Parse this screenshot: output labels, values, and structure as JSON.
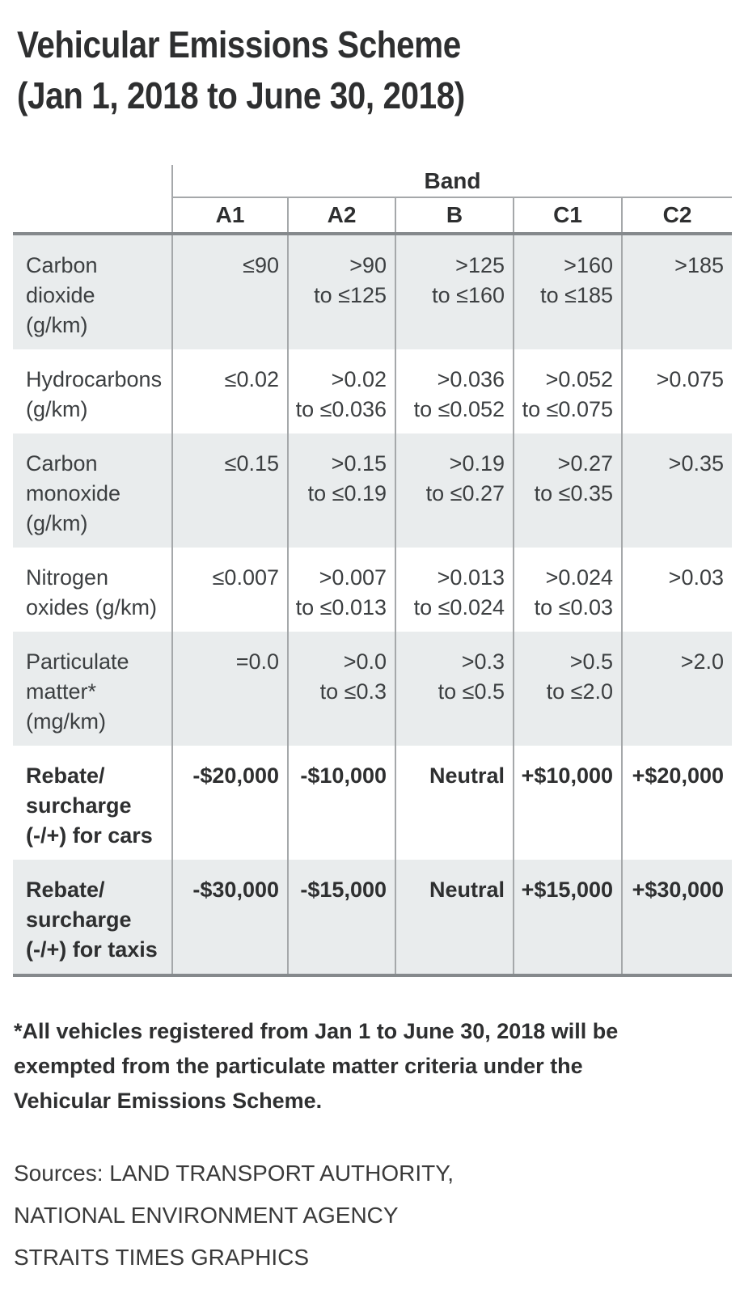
{
  "title": {
    "line1": "Vehicular Emissions Scheme",
    "line2": "(Jan 1, 2018 to June 30, 2018)"
  },
  "table": {
    "band_header": "Band",
    "columns": [
      "A1",
      "A2",
      "B",
      "C1",
      "C2"
    ],
    "rows": [
      {
        "label": "Carbon dioxide (g/km)",
        "label_lines": [
          "Carbon",
          "dioxide",
          "(g/km)"
        ],
        "cells": [
          [
            "≤90"
          ],
          [
            ">90",
            "to ≤125"
          ],
          [
            ">125",
            "to ≤160"
          ],
          [
            ">160",
            "to ≤185"
          ],
          [
            ">185"
          ]
        ],
        "shaded": true,
        "bold": false
      },
      {
        "label": "Hydrocarbons (g/km)",
        "label_lines": [
          "Hydrocarbons",
          "(g/km)"
        ],
        "cells": [
          [
            "≤0.02"
          ],
          [
            ">0.02",
            "to ≤0.036"
          ],
          [
            ">0.036",
            "to ≤0.052"
          ],
          [
            ">0.052",
            "to ≤0.075"
          ],
          [
            ">0.075"
          ]
        ],
        "shaded": false,
        "bold": false
      },
      {
        "label": "Carbon monoxide (g/km)",
        "label_lines": [
          "Carbon",
          "monoxide",
          "(g/km)"
        ],
        "cells": [
          [
            "≤0.15"
          ],
          [
            ">0.15",
            "to ≤0.19"
          ],
          [
            ">0.19",
            "to ≤0.27"
          ],
          [
            ">0.27",
            "to ≤0.35"
          ],
          [
            ">0.35"
          ]
        ],
        "shaded": true,
        "bold": false
      },
      {
        "label": "Nitrogen oxides (g/km)",
        "label_lines": [
          "Nitrogen",
          "oxides (g/km)"
        ],
        "cells": [
          [
            "≤0.007"
          ],
          [
            ">0.007",
            "to ≤0.013"
          ],
          [
            ">0.013",
            "to ≤0.024"
          ],
          [
            ">0.024",
            "to ≤0.03"
          ],
          [
            ">0.03"
          ]
        ],
        "shaded": false,
        "bold": false
      },
      {
        "label": "Particulate matter* (mg/km)",
        "label_lines": [
          "Particulate",
          "matter*",
          "(mg/km)"
        ],
        "cells": [
          [
            "=0.0"
          ],
          [
            ">0.0",
            "to ≤0.3"
          ],
          [
            ">0.3",
            "to ≤0.5"
          ],
          [
            ">0.5",
            "to ≤2.0"
          ],
          [
            ">2.0"
          ]
        ],
        "shaded": true,
        "bold": false
      },
      {
        "label": "Rebate/surcharge (-/+) for cars",
        "label_lines": [
          "Rebate/",
          "surcharge",
          "(-/+) for cars"
        ],
        "cells": [
          [
            "-$20,000"
          ],
          [
            "-$10,000"
          ],
          [
            "Neutral"
          ],
          [
            "+$10,000"
          ],
          [
            "+$20,000"
          ]
        ],
        "shaded": false,
        "bold": true
      },
      {
        "label": "Rebate/surcharge (-/+) for taxis",
        "label_lines": [
          "Rebate/",
          "surcharge",
          "(-/+) for taxis"
        ],
        "cells": [
          [
            "-$30,000"
          ],
          [
            "-$15,000"
          ],
          [
            "Neutral"
          ],
          [
            "+$15,000"
          ],
          [
            "+$30,000"
          ]
        ],
        "shaded": true,
        "bold": true
      }
    ]
  },
  "footnote_lines": [
    "*All vehicles registered from Jan 1 to June 30, 2018 will be",
    "exempted from the particulate matter criteria under the",
    "Vehicular Emissions Scheme."
  ],
  "sources_lines": [
    "Sources: LAND TRANSPORT AUTHORITY,",
    "NATIONAL ENVIRONMENT AGENCY",
    "STRAITS TIMES GRAPHICS"
  ],
  "colors": {
    "row_shade": "#e9eced",
    "grid_line": "#a5a8aa",
    "heavy_rule": "#85898c",
    "body_text": "#3c3f41",
    "dark_text": "#2e2f30"
  },
  "chart_data": {
    "type": "table",
    "title": "Vehicular Emissions Scheme (Jan 1, 2018 to June 30, 2018)",
    "column_group_label": "Band",
    "columns": [
      "A1",
      "A2",
      "B",
      "C1",
      "C2"
    ],
    "rows": [
      {
        "label": "Carbon dioxide (g/km)",
        "values": [
          "≤90",
          ">90 to ≤125",
          ">125 to ≤160",
          ">160 to ≤185",
          ">185"
        ]
      },
      {
        "label": "Hydrocarbons (g/km)",
        "values": [
          "≤0.02",
          ">0.02 to ≤0.036",
          ">0.036 to ≤0.052",
          ">0.052 to ≤0.075",
          ">0.075"
        ]
      },
      {
        "label": "Carbon monoxide (g/km)",
        "values": [
          "≤0.15",
          ">0.15 to ≤0.19",
          ">0.19 to ≤0.27",
          ">0.27 to ≤0.35",
          ">0.35"
        ]
      },
      {
        "label": "Nitrogen oxides (g/km)",
        "values": [
          "≤0.007",
          ">0.007 to ≤0.013",
          ">0.013 to ≤0.024",
          ">0.024 to ≤0.03",
          ">0.03"
        ]
      },
      {
        "label": "Particulate matter* (mg/km)",
        "values": [
          "=0.0",
          ">0.0 to ≤0.3",
          ">0.3 to ≤0.5",
          ">0.5 to ≤2.0",
          ">2.0"
        ]
      },
      {
        "label": "Rebate/surcharge (-/+) for cars",
        "values": [
          "-$20,000",
          "-$10,000",
          "Neutral",
          "+$10,000",
          "+$20,000"
        ]
      },
      {
        "label": "Rebate/surcharge (-/+) for taxis",
        "values": [
          "-$30,000",
          "-$15,000",
          "Neutral",
          "+$15,000",
          "+$30,000"
        ]
      }
    ],
    "footnote": "*All vehicles registered from Jan 1 to June 30, 2018 will be exempted from the particulate matter criteria under the Vehicular Emissions Scheme.",
    "sources": [
      "LAND TRANSPORT AUTHORITY",
      "NATIONAL ENVIRONMENT AGENCY",
      "STRAITS TIMES GRAPHICS"
    ]
  }
}
